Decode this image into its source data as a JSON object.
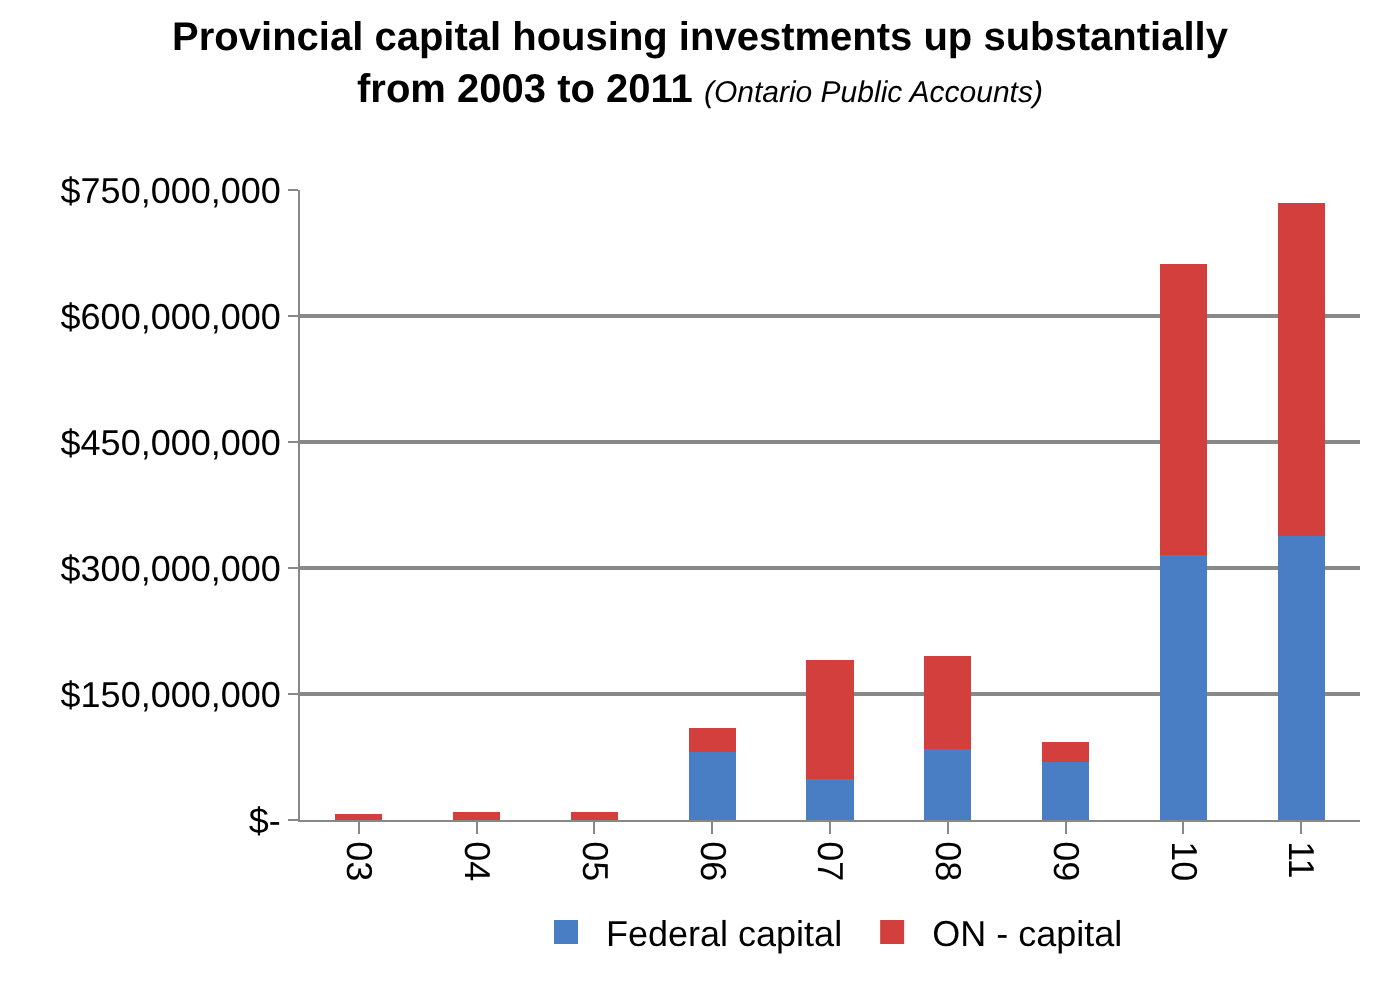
{
  "chart_data": {
    "type": "bar",
    "title": "Provincial capital housing investments up substantially from 2003 to 2011",
    "subtitle": "(Ontario Public Accounts)",
    "categories": [
      "03",
      "04",
      "05",
      "06",
      "07",
      "08",
      "09",
      "10",
      "11"
    ],
    "stacked": true,
    "series": [
      {
        "name": "Federal capital",
        "color": "#4a7ec4",
        "values": [
          0,
          0,
          0,
          81000000,
          49000000,
          85000000,
          69000000,
          315000000,
          338000000
        ]
      },
      {
        "name": "ON - capital",
        "color": "#d23f3c",
        "values": [
          7000000,
          10000000,
          10000000,
          29000000,
          141000000,
          110000000,
          24000000,
          347000000,
          397000000
        ]
      }
    ],
    "ylim": [
      0,
      750000000
    ],
    "yticks": [
      {
        "value": 0,
        "label": "$-"
      },
      {
        "value": 150000000,
        "label": "$150,000,000"
      },
      {
        "value": 300000000,
        "label": "$300,000,000"
      },
      {
        "value": 450000000,
        "label": "$450,000,000"
      },
      {
        "value": 600000000,
        "label": "$600,000,000"
      },
      {
        "value": 750000000,
        "label": "$750,000,000"
      }
    ],
    "grid": "y",
    "legend": "bottom"
  }
}
